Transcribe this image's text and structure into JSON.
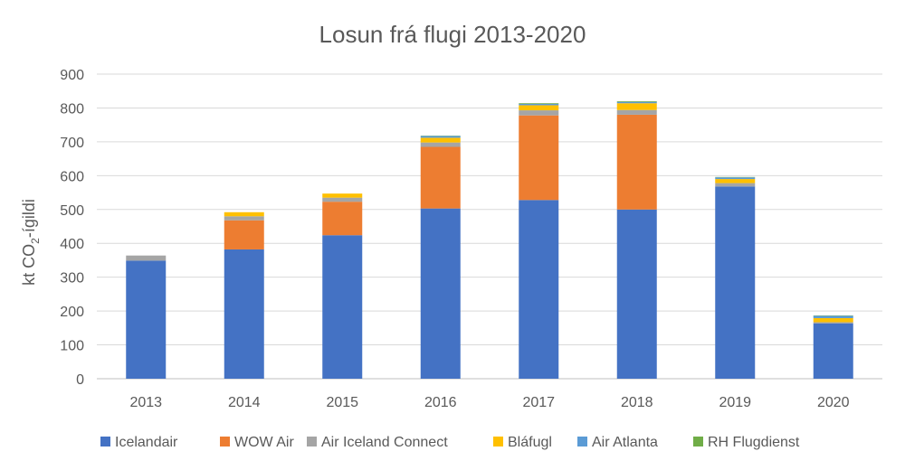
{
  "chart_data": {
    "type": "bar",
    "stacked": true,
    "title": "Losun frá flugi 2013-2020",
    "ylabel_main": "kt CO",
    "ylabel_sub": "2",
    "ylabel_suffix": "-ígildi",
    "xlabel": "",
    "ylim": [
      0,
      900
    ],
    "yticks": [
      0,
      100,
      200,
      300,
      400,
      500,
      600,
      700,
      800,
      900
    ],
    "grid": true,
    "legend_position": "bottom",
    "categories": [
      "2013",
      "2014",
      "2015",
      "2016",
      "2017",
      "2018",
      "2019",
      "2020"
    ],
    "series": [
      {
        "name": "Icelandair",
        "color": "#4472c4",
        "values": [
          349,
          382,
          424,
          503,
          528,
          500,
          568,
          163
        ]
      },
      {
        "name": "WOW Air",
        "color": "#ed7d31",
        "values": [
          0,
          86,
          99,
          182,
          250,
          280,
          0,
          0
        ]
      },
      {
        "name": "Air Iceland Connect",
        "color": "#a5a5a5",
        "values": [
          15,
          12,
          12,
          13,
          15,
          14,
          10,
          4
        ]
      },
      {
        "name": "Bláfugl",
        "color": "#ffc000",
        "values": [
          0,
          12,
          12,
          14,
          15,
          20,
          12,
          12
        ]
      },
      {
        "name": "Air Atlanta",
        "color": "#5b9bd5",
        "values": [
          0,
          0,
          0,
          5,
          4,
          4,
          5,
          7
        ]
      },
      {
        "name": "RH Flugdienst",
        "color": "#70ad47",
        "values": [
          0,
          0,
          0,
          1,
          2,
          2,
          1,
          1
        ]
      }
    ]
  }
}
